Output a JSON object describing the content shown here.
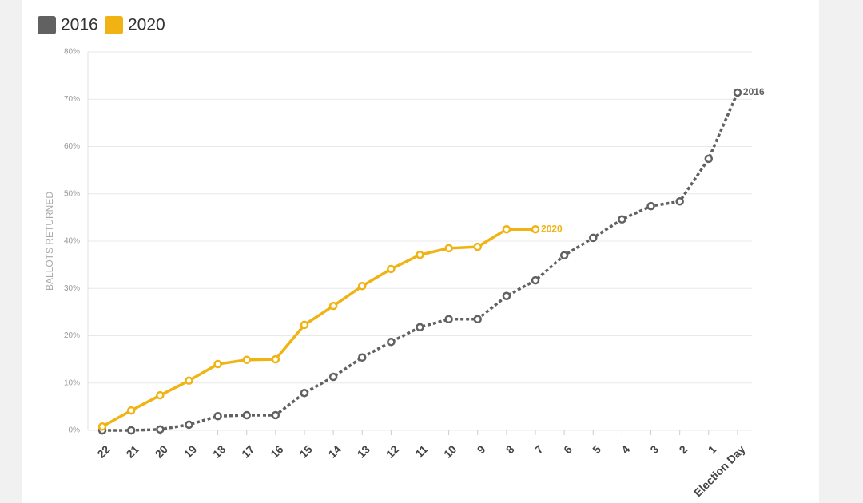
{
  "chart_data": {
    "type": "line",
    "categories": [
      "22",
      "21",
      "20",
      "19",
      "18",
      "17",
      "16",
      "15",
      "14",
      "13",
      "12",
      "11",
      "10",
      "9",
      "8",
      "7",
      "6",
      "5",
      "4",
      "3",
      "2",
      "1",
      "Election Day"
    ],
    "series": [
      {
        "name": "2016",
        "color": "#616161",
        "dashed": true,
        "values": [
          0,
          0,
          0.2,
          1.2,
          3.0,
          3.2,
          3.2,
          7.9,
          11.3,
          15.4,
          18.7,
          21.8,
          23.5,
          23.5,
          28.4,
          31.7,
          37.0,
          40.7,
          44.6,
          47.4,
          48.4,
          57.4,
          71.4
        ]
      },
      {
        "name": "2020",
        "color": "#f0b313",
        "dashed": false,
        "values": [
          0.8,
          4.2,
          7.4,
          10.5,
          14.0,
          14.9,
          15.0,
          22.3,
          26.3,
          30.5,
          34.1,
          37.1,
          38.5,
          38.8,
          42.5,
          42.5,
          null,
          null,
          null,
          null,
          null,
          null,
          null
        ]
      }
    ],
    "y_label": "BALLOTS RETURNED",
    "ylim": [
      0,
      80
    ],
    "yticks": [
      {
        "value": 0,
        "label": "0%"
      },
      {
        "value": 10,
        "label": "10%"
      },
      {
        "value": 20,
        "label": "20%"
      },
      {
        "value": 30,
        "label": "30%"
      },
      {
        "value": 40,
        "label": "40%"
      },
      {
        "value": 50,
        "label": "50%"
      },
      {
        "value": 60,
        "label": "60%"
      },
      {
        "value": 70,
        "label": "70%"
      },
      {
        "value": 80,
        "label": "80%"
      }
    ],
    "grid": true
  }
}
